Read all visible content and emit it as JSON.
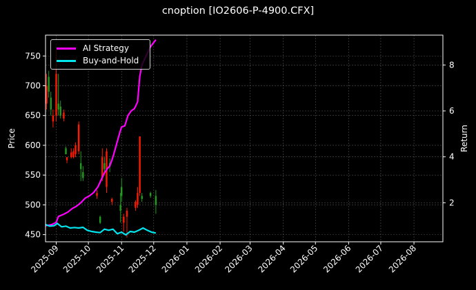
{
  "title": "cnoption [IO2606-P-4900.CFX]",
  "legend": [
    {
      "label": "AI Strategy",
      "color": "#ff00ff"
    },
    {
      "label": "Buy-and-Hold",
      "color": "#00e5ee"
    }
  ],
  "axes": {
    "ylabel_left": "Price",
    "ylabel_right": "Return",
    "left_ticks": [
      "450",
      "500",
      "550",
      "600",
      "650",
      "700",
      "750"
    ],
    "right_ticks": [
      "2",
      "4",
      "6",
      "8"
    ],
    "x_ticks": [
      "2025-09",
      "2025-10",
      "2025-11",
      "2025-12",
      "2026-01",
      "2026-02",
      "2026-03",
      "2026-04",
      "2026-05",
      "2026-06",
      "2026-07",
      "2026-08"
    ]
  },
  "colors": {
    "background": "#000000",
    "up_candle": "#1f9e1f",
    "down_candle": "#ff1a00",
    "grid": "#555555",
    "strategy": "#ff00ff",
    "buyhold": "#00e5ee"
  },
  "chart_data": {
    "type": "line",
    "title": "cnoption [IO2606-P-4900.CFX]",
    "xlabel": "",
    "ylabel": "Price",
    "ylabel_secondary": "Return",
    "ylim": [
      438,
      785
    ],
    "ylim_secondary": [
      0.3,
      9.3
    ],
    "xlim": [
      "2025-08-22",
      "2026-08-28"
    ],
    "grid": true,
    "legend_position": "upper left",
    "candles": [
      {
        "date": "2025-08-23",
        "open": 700,
        "close": 670,
        "high": 720,
        "low": 660
      },
      {
        "date": "2025-08-25",
        "open": 690,
        "close": 715,
        "high": 725,
        "low": 680
      },
      {
        "date": "2025-08-27",
        "open": 660,
        "close": 680,
        "high": 690,
        "low": 650
      },
      {
        "date": "2025-08-29",
        "open": 650,
        "close": 640,
        "high": 660,
        "low": 630
      },
      {
        "date": "2025-09-01",
        "open": 720,
        "close": 650,
        "high": 760,
        "low": 640
      },
      {
        "date": "2025-09-03",
        "open": 660,
        "close": 670,
        "high": 720,
        "low": 650
      },
      {
        "date": "2025-09-05",
        "open": 650,
        "close": 665,
        "high": 675,
        "low": 645
      },
      {
        "date": "2025-09-08",
        "open": 655,
        "close": 645,
        "high": 660,
        "low": 640
      },
      {
        "date": "2025-09-10",
        "open": 585,
        "close": 595,
        "high": 598,
        "low": 585
      },
      {
        "date": "2025-09-11",
        "open": 580,
        "close": 575,
        "high": 580,
        "low": 570
      },
      {
        "date": "2025-09-15",
        "open": 588,
        "close": 580,
        "high": 595,
        "low": 578
      },
      {
        "date": "2025-09-17",
        "open": 590,
        "close": 580,
        "high": 595,
        "low": 578
      },
      {
        "date": "2025-09-19",
        "open": 600,
        "close": 585,
        "high": 605,
        "low": 580
      },
      {
        "date": "2025-09-22",
        "open": 635,
        "close": 590,
        "high": 640,
        "low": 585
      },
      {
        "date": "2025-09-24",
        "open": 560,
        "close": 570,
        "high": 590,
        "low": 540
      },
      {
        "date": "2025-09-26",
        "open": 545,
        "close": 555,
        "high": 565,
        "low": 540
      },
      {
        "date": "2025-10-09",
        "open": 520,
        "close": 515,
        "high": 525,
        "low": 510
      },
      {
        "date": "2025-10-12",
        "open": 470,
        "close": 480,
        "high": 482,
        "low": 468
      },
      {
        "date": "2025-10-14",
        "open": 580,
        "close": 545,
        "high": 595,
        "low": 540
      },
      {
        "date": "2025-10-16",
        "open": 560,
        "close": 570,
        "high": 580,
        "low": 555
      },
      {
        "date": "2025-10-18",
        "open": 590,
        "close": 530,
        "high": 595,
        "low": 520
      },
      {
        "date": "2025-10-21",
        "open": 565,
        "close": 570,
        "high": 578,
        "low": 555
      },
      {
        "date": "2025-10-23",
        "open": 510,
        "close": 505,
        "high": 512,
        "low": 500
      },
      {
        "date": "2025-10-31",
        "open": 490,
        "close": 500,
        "high": 520,
        "low": 470
      },
      {
        "date": "2025-11-01",
        "open": 515,
        "close": 530,
        "high": 545,
        "low": 505
      },
      {
        "date": "2025-11-03",
        "open": 480,
        "close": 470,
        "high": 485,
        "low": 455
      },
      {
        "date": "2025-11-06",
        "open": 490,
        "close": 480,
        "high": 495,
        "low": 445
      },
      {
        "date": "2025-11-14",
        "open": 505,
        "close": 495,
        "high": 508,
        "low": 490
      },
      {
        "date": "2025-11-16",
        "open": 520,
        "close": 500,
        "high": 530,
        "low": 495
      },
      {
        "date": "2025-11-18",
        "open": 615,
        "close": 520,
        "high": 615,
        "low": 515
      },
      {
        "date": "2025-11-20",
        "open": 510,
        "close": 515,
        "high": 520,
        "low": 505
      },
      {
        "date": "2025-11-28",
        "open": 515,
        "close": 520,
        "high": 522,
        "low": 512
      },
      {
        "date": "2025-12-03",
        "open": 500,
        "close": 515,
        "high": 525,
        "low": 485
      }
    ],
    "series": [
      {
        "name": "AI Strategy",
        "axis": "right",
        "x": [
          "2025-08-22",
          "2025-08-28",
          "2025-09-01",
          "2025-09-03",
          "2025-09-08",
          "2025-09-12",
          "2025-09-16",
          "2025-09-20",
          "2025-09-24",
          "2025-09-28",
          "2025-10-02",
          "2025-10-06",
          "2025-10-10",
          "2025-10-13",
          "2025-10-16",
          "2025-10-19",
          "2025-10-21",
          "2025-10-24",
          "2025-10-27",
          "2025-10-30",
          "2025-11-01",
          "2025-11-04",
          "2025-11-07",
          "2025-11-10",
          "2025-11-13",
          "2025-11-16",
          "2025-11-18",
          "2025-11-20",
          "2025-11-24",
          "2025-11-28",
          "2025-12-03"
        ],
        "values": [
          1.0,
          1.05,
          1.15,
          1.4,
          1.5,
          1.6,
          1.75,
          1.85,
          2.0,
          2.2,
          2.3,
          2.45,
          2.7,
          3.0,
          3.3,
          3.5,
          3.6,
          4.0,
          4.5,
          5.0,
          5.3,
          5.35,
          5.8,
          6.0,
          6.1,
          6.4,
          7.5,
          8.0,
          8.4,
          8.8,
          9.1
        ]
      },
      {
        "name": "Buy-and-Hold",
        "axis": "right",
        "x": [
          "2025-08-22",
          "2025-08-26",
          "2025-08-30",
          "2025-09-02",
          "2025-09-06",
          "2025-09-10",
          "2025-09-14",
          "2025-09-18",
          "2025-09-22",
          "2025-09-26",
          "2025-09-30",
          "2025-10-04",
          "2025-10-08",
          "2025-10-12",
          "2025-10-16",
          "2025-10-20",
          "2025-10-24",
          "2025-10-28",
          "2025-11-01",
          "2025-11-05",
          "2025-11-09",
          "2025-11-13",
          "2025-11-17",
          "2025-11-21",
          "2025-11-25",
          "2025-11-29",
          "2025-12-03"
        ],
        "values": [
          1.05,
          0.98,
          1.0,
          1.1,
          0.95,
          0.98,
          0.9,
          0.92,
          0.9,
          0.93,
          0.8,
          0.75,
          0.72,
          0.7,
          0.85,
          0.8,
          0.85,
          0.65,
          0.72,
          0.6,
          0.75,
          0.72,
          0.8,
          0.9,
          0.8,
          0.72,
          0.68
        ]
      }
    ]
  }
}
